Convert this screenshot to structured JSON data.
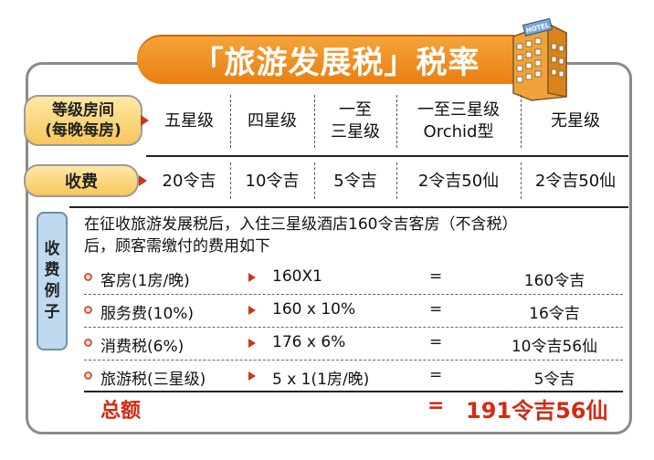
{
  "title": "「旅游发展税」税率",
  "hotel_sign": "HOTEL",
  "header": {
    "rank_label_line1": "等级房间",
    "rank_label_line2": "(每晚每房)",
    "fee_label": "收费",
    "ranks": [
      {
        "line1": "五星级",
        "line2": ""
      },
      {
        "line1": "四星级",
        "line2": ""
      },
      {
        "line1": "一至",
        "line2": "三星级"
      },
      {
        "line1": "一至三星级",
        "line2": "Orchid型"
      },
      {
        "line1": "无星级",
        "line2": ""
      }
    ],
    "fees": [
      "20令吉",
      "10令吉",
      "5令吉",
      "2令吉50仙",
      "2令吉50仙"
    ]
  },
  "example": {
    "tab_chars": [
      "收",
      "费",
      "例",
      "子"
    ],
    "intro_line1": "在征收旅游发展税后，入住三星级酒店160令吉客房（不含税）",
    "intro_line2": "后，顾客需缴付的费用如下",
    "rows": [
      {
        "label": "客房(1房/晚)",
        "calc": "160X1",
        "eq": "=",
        "result": "160令吉"
      },
      {
        "label": "服务费(10%)",
        "calc": "160 x 10%",
        "eq": "=",
        "result": "16令吉"
      },
      {
        "label": "消费税(6%)",
        "calc": "176 x 6%",
        "eq": "=",
        "result": "10令吉56仙"
      },
      {
        "label": "旅游税(三星级)",
        "calc": "5 x 1(1房/晚)",
        "eq": "=",
        "result": "5令吉"
      }
    ],
    "total_label": "总额",
    "total_eq": "=",
    "total_value": "191令吉56仙"
  },
  "colors": {
    "accent_orange": "#e97f12",
    "pill_yellow": "#f7c65a",
    "total_red": "#d42a12",
    "tab_blue": "#bfd9ee"
  }
}
